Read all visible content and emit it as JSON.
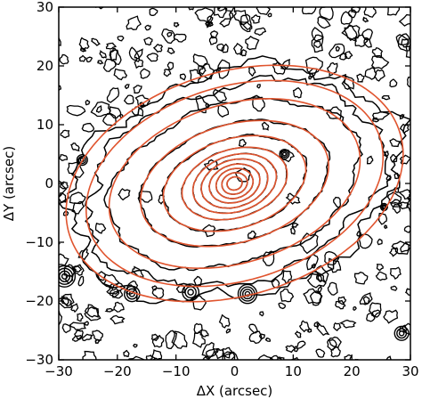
{
  "chart_data": {
    "type": "contour",
    "xlabel": "ΔX (arcsec)",
    "ylabel": "ΔY (arcsec)",
    "xlim": [
      -30,
      30
    ],
    "ylim": [
      -30,
      30
    ],
    "xticks": [
      -30,
      -20,
      -10,
      0,
      10,
      20,
      30
    ],
    "yticks": [
      -30,
      -20,
      -10,
      0,
      10,
      20,
      30
    ],
    "grid": false,
    "series": [
      {
        "kind": "observed-isophotes",
        "color": "#000000",
        "contours": [
          {
            "cx": 0,
            "cy": 0,
            "a": 29,
            "b": 19,
            "pa_deg": 17
          },
          {
            "cx": 0,
            "cy": 0,
            "a": 26,
            "b": 16.5,
            "pa_deg": 17
          },
          {
            "cx": 0,
            "cy": 0,
            "a": 22,
            "b": 13.5,
            "pa_deg": 17
          },
          {
            "cx": 0,
            "cy": 0,
            "a": 16.5,
            "b": 10,
            "pa_deg": 17
          },
          {
            "cx": 0,
            "cy": 0,
            "a": 12.5,
            "b": 7.6,
            "pa_deg": 17
          },
          {
            "cx": 0,
            "cy": 0,
            "a": 9.2,
            "b": 5.8,
            "pa_deg": 17
          },
          {
            "cx": 0,
            "cy": 0,
            "a": 7.3,
            "b": 4.8,
            "pa_deg": 17
          },
          {
            "cx": 0,
            "cy": 0,
            "a": 5.8,
            "b": 4.0,
            "pa_deg": 17
          },
          {
            "cx": 0,
            "cy": 0,
            "a": 4.4,
            "b": 3.2,
            "pa_deg": 17
          },
          {
            "cx": 0,
            "cy": 0,
            "a": 3.2,
            "b": 2.5,
            "pa_deg": 17
          },
          {
            "cx": 0,
            "cy": 0,
            "a": 2.2,
            "b": 1.8,
            "pa_deg": 17
          },
          {
            "cx": 0,
            "cy": 0,
            "a": 1.3,
            "b": 1.1,
            "pa_deg": 17
          }
        ],
        "sources": [
          {
            "x": -29,
            "y": -15.8,
            "r": 1.8
          },
          {
            "x": -17.5,
            "y": -18.8,
            "r": 1.3
          },
          {
            "x": -7.5,
            "y": -18.5,
            "r": 1.4
          },
          {
            "x": 2.2,
            "y": -18.8,
            "r": 1.6
          },
          {
            "x": 28.5,
            "y": -25.5,
            "r": 1.2
          },
          {
            "x": 8.5,
            "y": 5.0,
            "r": 0.8
          },
          {
            "x": -26,
            "y": 4.0,
            "r": 0.9
          },
          {
            "x": 25.5,
            "y": -4.0,
            "r": 0.6
          }
        ]
      },
      {
        "kind": "model-isophotes",
        "color": "#e0542e",
        "contours": [
          {
            "cx": 0,
            "cy": 0,
            "a": 29.5,
            "b": 19.0,
            "pa_deg": 17
          },
          {
            "cx": 0,
            "cy": 0,
            "a": 26.0,
            "b": 16.5,
            "pa_deg": 17
          },
          {
            "cx": 0,
            "cy": 0,
            "a": 22.0,
            "b": 13.5,
            "pa_deg": 17
          },
          {
            "cx": 0,
            "cy": 0,
            "a": 16.5,
            "b": 10.0,
            "pa_deg": 17
          },
          {
            "cx": 0,
            "cy": 0,
            "a": 12.5,
            "b": 7.6,
            "pa_deg": 17
          },
          {
            "cx": 0,
            "cy": 0,
            "a": 9.2,
            "b": 5.8,
            "pa_deg": 17
          },
          {
            "cx": 0,
            "cy": 0,
            "a": 7.3,
            "b": 4.8,
            "pa_deg": 17
          },
          {
            "cx": 0,
            "cy": 0,
            "a": 5.8,
            "b": 4.0,
            "pa_deg": 17
          },
          {
            "cx": 0,
            "cy": 0,
            "a": 4.4,
            "b": 3.2,
            "pa_deg": 17
          },
          {
            "cx": 0,
            "cy": 0,
            "a": 3.2,
            "b": 2.5,
            "pa_deg": 17
          },
          {
            "cx": 0,
            "cy": 0,
            "a": 2.2,
            "b": 1.8,
            "pa_deg": 17
          },
          {
            "cx": 0,
            "cy": 0,
            "a": 1.3,
            "b": 1.1,
            "pa_deg": 17
          }
        ]
      }
    ]
  }
}
